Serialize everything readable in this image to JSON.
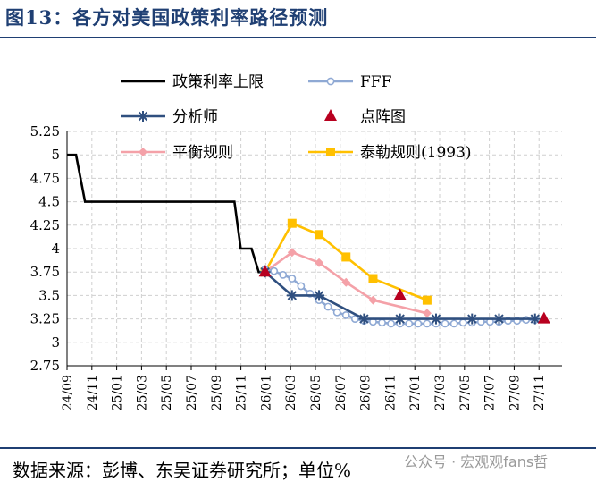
{
  "header": {
    "title": "图13：各方对美国政策利率路径预测"
  },
  "footer": {
    "source": "数据来源：彭博、东吴证券研究所；单位%",
    "watermark": "公众号 · 宏观观fans哲"
  },
  "chart_data": {
    "type": "line",
    "title": "各方对美国政策利率路径预测",
    "xlabel": "",
    "ylabel": "单位%",
    "ylim": [
      2.75,
      5.25
    ],
    "yticks": [
      "5.25",
      "5",
      "4.75",
      "4.5",
      "4.25",
      "4",
      "3.75",
      "3.5",
      "3.25",
      "3",
      "2.75"
    ],
    "categories": [
      "24/09",
      "24/11",
      "25/01",
      "25/03",
      "25/05",
      "25/07",
      "25/09",
      "25/11",
      "26/01",
      "26/03",
      "26/05",
      "26/07",
      "26/09",
      "26/11",
      "27/01",
      "27/03",
      "27/05",
      "27/07",
      "27/09",
      "27/11"
    ],
    "grid": true,
    "legend_position": "top",
    "series": [
      {
        "name": "政策利率上限",
        "color": "#000000",
        "style": "step",
        "x": [
          0,
          1,
          2,
          5,
          6,
          7,
          8,
          9,
          10,
          11,
          12,
          13,
          14,
          15,
          16,
          17,
          18,
          18.6,
          19.3,
          20.5,
          21.3,
          22
        ],
        "values": [
          5,
          5,
          4.5,
          4.5,
          4.5,
          4.5,
          4.5,
          4.5,
          4.5,
          4.5,
          4.5,
          4.5,
          4.5,
          4.5,
          4.5,
          4.5,
          4.5,
          4.5,
          4,
          4,
          3.75,
          3.75
        ]
      },
      {
        "name": "FFF",
        "color": "#8fa9d4",
        "marker": "circle",
        "x": [
          22,
          23,
          24,
          25,
          26,
          27,
          28,
          29,
          30,
          31,
          32,
          33,
          34,
          35,
          36,
          37,
          38,
          39,
          40,
          41,
          42,
          43,
          44,
          45,
          46,
          47,
          48,
          49,
          50,
          51,
          52
        ],
        "values": [
          3.78,
          3.76,
          3.72,
          3.68,
          3.6,
          3.52,
          3.45,
          3.38,
          3.32,
          3.29,
          3.25,
          3.23,
          3.22,
          3.21,
          3.2,
          3.2,
          3.2,
          3.2,
          3.2,
          3.2,
          3.2,
          3.2,
          3.21,
          3.21,
          3.22,
          3.22,
          3.22,
          3.23,
          3.23,
          3.24,
          3.24
        ]
      },
      {
        "name": "分析师",
        "color": "#2f4f7f",
        "marker": "star",
        "x": [
          22,
          25,
          28,
          33,
          37,
          41,
          45,
          48,
          52
        ],
        "values": [
          3.75,
          3.5,
          3.5,
          3.25,
          3.25,
          3.25,
          3.25,
          3.25,
          3.25
        ]
      },
      {
        "name": "点阵图",
        "color": "#b8001f",
        "marker": "triangle",
        "x": [
          22,
          37,
          53
        ],
        "values": [
          3.75,
          3.5,
          3.25
        ]
      },
      {
        "name": "平衡规则",
        "color": "#f4a1a8",
        "marker": "diamond",
        "x": [
          22,
          25,
          28,
          31,
          34,
          40
        ],
        "values": [
          3.75,
          3.96,
          3.85,
          3.64,
          3.45,
          3.31
        ]
      },
      {
        "name": "泰勒规则(1993)",
        "color": "#ffc000",
        "marker": "square",
        "x": [
          22,
          25,
          28,
          31,
          34,
          40
        ],
        "values": [
          3.75,
          4.27,
          4.15,
          3.91,
          3.68,
          3.45
        ]
      }
    ]
  }
}
